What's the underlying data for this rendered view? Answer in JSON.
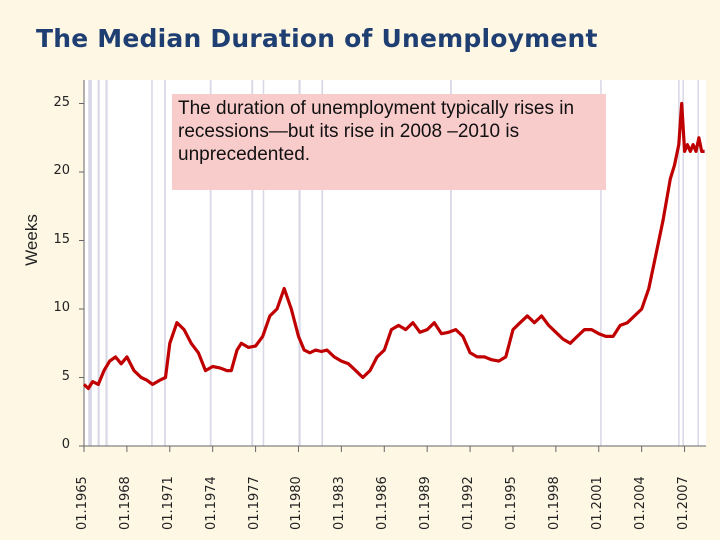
{
  "chart_data": {
    "type": "line",
    "title": "The Median Duration of Unemployment",
    "ylabel": "Weeks",
    "xlabel": "",
    "ylim": [
      0,
      25
    ],
    "yticks": [
      "0",
      "5",
      "10",
      "15",
      "20",
      "25"
    ],
    "xticks": [
      "01.1965",
      "01.1968",
      "01.1971",
      "01.1974",
      "01.1977",
      "01.1980",
      "01.1983",
      "01.1986",
      "01.1989",
      "01.1992",
      "01.1995",
      "01.1998",
      "01.2001",
      "01.2004",
      "01.2007"
    ],
    "xlim": [
      1965.0,
      2008.5
    ],
    "grid": false,
    "annotation": "The duration of unemployment typically rises in recessions—but its rise in 2008 –2010 is unprecedented.",
    "series_color": "#c00000",
    "recession_shading_color": "#d7d7e6",
    "recessions": [
      [
        1965.3,
        1965.55
      ],
      [
        1965.95,
        1966.1
      ],
      [
        1966.5,
        1966.65
      ],
      [
        1969.7,
        1969.8
      ],
      [
        1970.6,
        1970.72
      ],
      [
        1973.8,
        1973.92
      ],
      [
        1976.7,
        1976.83
      ],
      [
        1977.5,
        1977.6
      ],
      [
        1980.0,
        1980.15
      ],
      [
        1981.6,
        1981.72
      ],
      [
        1990.6,
        1990.72
      ],
      [
        2001.1,
        2001.2
      ],
      [
        2006.55,
        2006.65
      ],
      [
        2006.85,
        2006.95
      ],
      [
        2007.9,
        2008.0
      ]
    ],
    "x": [
      1965.0,
      1965.3,
      1965.6,
      1966.0,
      1966.4,
      1966.8,
      1967.2,
      1967.6,
      1968.0,
      1968.5,
      1969.0,
      1969.4,
      1969.8,
      1970.3,
      1970.7,
      1971.0,
      1971.5,
      1972.0,
      1972.5,
      1973.0,
      1973.5,
      1974.0,
      1974.5,
      1975.0,
      1975.3,
      1975.7,
      1976.0,
      1976.5,
      1977.0,
      1977.5,
      1978.0,
      1978.5,
      1979.0,
      1979.5,
      1980.0,
      1980.4,
      1980.8,
      1981.2,
      1981.6,
      1982.0,
      1982.5,
      1983.0,
      1983.5,
      1984.0,
      1984.5,
      1985.0,
      1985.5,
      1986.0,
      1986.5,
      1987.0,
      1987.5,
      1988.0,
      1988.5,
      1989.0,
      1989.5,
      1990.0,
      1990.5,
      1991.0,
      1991.5,
      1992.0,
      1992.5,
      1993.0,
      1993.5,
      1994.0,
      1994.5,
      1995.0,
      1995.5,
      1996.0,
      1996.5,
      1997.0,
      1997.5,
      1998.0,
      1998.5,
      1999.0,
      1999.5,
      2000.0,
      2000.5,
      2001.0,
      2001.5,
      2002.0,
      2002.5,
      2003.0,
      2003.5,
      2004.0,
      2004.5,
      2005.0,
      2005.5,
      2006.0,
      2006.3,
      2006.6,
      2006.8,
      2007.0,
      2007.2,
      2007.4,
      2007.6,
      2007.8,
      2008.0,
      2008.2,
      2008.4
    ],
    "values": [
      4.5,
      4.2,
      4.7,
      4.5,
      5.5,
      6.2,
      6.5,
      6.0,
      6.5,
      5.5,
      5.0,
      4.8,
      4.5,
      4.8,
      5.0,
      7.5,
      9.0,
      8.5,
      7.5,
      6.8,
      5.5,
      5.8,
      5.7,
      5.5,
      5.5,
      7.0,
      7.5,
      7.2,
      7.3,
      8.0,
      9.5,
      10.0,
      11.5,
      10.0,
      8.0,
      7.0,
      6.8,
      7.0,
      6.9,
      7.0,
      6.5,
      6.2,
      6.0,
      5.5,
      5.0,
      5.5,
      6.5,
      7.0,
      8.5,
      8.8,
      8.5,
      9.0,
      8.3,
      8.5,
      9.0,
      8.2,
      8.3,
      8.5,
      8.0,
      6.8,
      6.5,
      6.5,
      6.3,
      6.2,
      6.5,
      8.5,
      9.0,
      9.5,
      9.0,
      9.5,
      8.8,
      8.3,
      7.8,
      7.5,
      8.0,
      8.5,
      8.5,
      8.2,
      8.0,
      8.0,
      8.8,
      9.0,
      9.5,
      10.0,
      11.5,
      14.0,
      16.5,
      19.5,
      20.5,
      22.0,
      25.0,
      21.5,
      22.0,
      21.5,
      22.0,
      21.5,
      22.5,
      21.5,
      21.5
    ]
  }
}
